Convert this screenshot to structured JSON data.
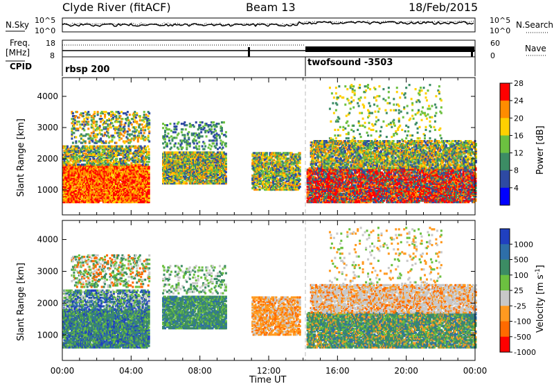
{
  "header": {
    "station": "Clyde River (fitACF)",
    "beam": "Beam 13",
    "date": "18/Feb/2015"
  },
  "noise_panel": {
    "left_label": "N.Sky",
    "right_label": "N.Search",
    "y_ticks": [
      "10^5",
      "10^0"
    ]
  },
  "freq_panel": {
    "left_label_line1": "Freq.",
    "left_label_line2": "[MHz]",
    "left_ticks": [
      "18",
      "8"
    ],
    "right_ticks": [
      "60",
      "0"
    ],
    "right_label": "Nave"
  },
  "cpid_panel": {
    "label": "CPID",
    "programs": [
      {
        "name": "rbsp 200",
        "start_hour": 0
      },
      {
        "name": "twofsound -3503",
        "start_hour": 14
      }
    ]
  },
  "chart_data": [
    {
      "type": "heatmap",
      "id": "power",
      "ylabel": "Slant Range [km]",
      "y_ticks": [
        1000,
        2000,
        3000,
        4000
      ],
      "ylim": [
        200,
        4600
      ],
      "xlim_hours": [
        0,
        24
      ],
      "x_ticks": [
        "00:00",
        "04:00",
        "08:00",
        "12:00",
        "16:00",
        "20:00",
        "00:00"
      ],
      "colorbar": {
        "label": "Power [dB]",
        "ticks": [
          "4",
          "8",
          "12",
          "16",
          "20",
          "24",
          "28"
        ],
        "colors": [
          "#0000ff",
          "#2e4aa3",
          "#3c8c64",
          "#6cc040",
          "#ffd000",
          "#ff8c00",
          "#ff0000"
        ]
      }
    },
    {
      "type": "heatmap",
      "id": "velocity",
      "ylabel": "Slant Range [km]",
      "y_ticks": [
        1000,
        2000,
        3000,
        4000
      ],
      "ylim": [
        200,
        4600
      ],
      "xlim_hours": [
        0,
        24
      ],
      "x_ticks": [
        "00:00",
        "04:00",
        "08:00",
        "12:00",
        "16:00",
        "20:00",
        "00:00"
      ],
      "xlabel": "Time UT",
      "colorbar": {
        "label": "Velocity [m s^-1]",
        "ticks": [
          "1000",
          "500",
          "100",
          "25",
          "-25",
          "-100",
          "-500",
          "-1000"
        ],
        "colors": [
          "#2040c0",
          "#2e6fa8",
          "#3c8c64",
          "#6cc040",
          "#c8c8c8",
          "#ff9a20",
          "#ff6a00",
          "#ff0000"
        ]
      }
    }
  ]
}
